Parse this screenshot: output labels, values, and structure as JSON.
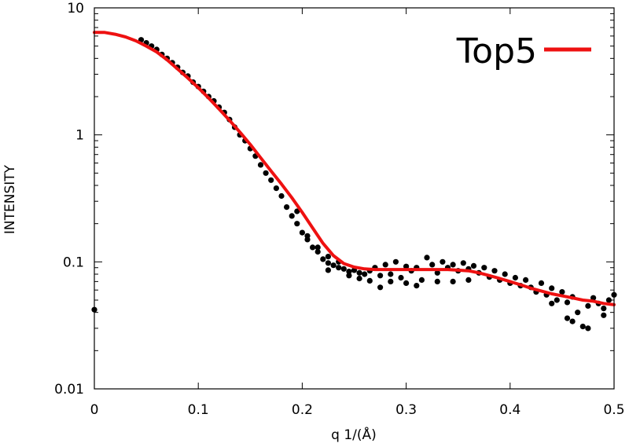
{
  "chart_data": {
    "type": "scatter",
    "title": "",
    "xlabel": "q 1/(Å)",
    "ylabel": "INTENSITY",
    "xlim": [
      0,
      0.5
    ],
    "ylim": [
      0.01,
      10
    ],
    "yscale": "log",
    "grid": false,
    "legend_position": "top-right",
    "x_ticks": [
      "0",
      "0.1",
      "0.2",
      "0.3",
      "0.4",
      "0.5"
    ],
    "y_ticks": [
      "0.01",
      "0.1",
      "1",
      "10"
    ],
    "series": [
      {
        "name": "",
        "kind": "points",
        "color": "#000000",
        "points": [
          [
            0.0,
            0.042
          ],
          [
            0.045,
            5.6
          ],
          [
            0.05,
            5.3
          ],
          [
            0.055,
            5.0
          ],
          [
            0.06,
            4.7
          ],
          [
            0.065,
            4.3
          ],
          [
            0.07,
            4.0
          ],
          [
            0.075,
            3.7
          ],
          [
            0.08,
            3.4
          ],
          [
            0.085,
            3.1
          ],
          [
            0.09,
            2.9
          ],
          [
            0.095,
            2.6
          ],
          [
            0.1,
            2.4
          ],
          [
            0.105,
            2.2
          ],
          [
            0.11,
            2.0
          ],
          [
            0.115,
            1.85
          ],
          [
            0.12,
            1.65
          ],
          [
            0.125,
            1.5
          ],
          [
            0.13,
            1.32
          ],
          [
            0.135,
            1.15
          ],
          [
            0.14,
            1.0
          ],
          [
            0.145,
            0.9
          ],
          [
            0.15,
            0.78
          ],
          [
            0.155,
            0.68
          ],
          [
            0.16,
            0.58
          ],
          [
            0.165,
            0.5
          ],
          [
            0.17,
            0.44
          ],
          [
            0.175,
            0.38
          ],
          [
            0.18,
            0.33
          ],
          [
            0.185,
            0.27
          ],
          [
            0.19,
            0.23
          ],
          [
            0.195,
            0.2
          ],
          [
            0.2,
            0.17
          ],
          [
            0.205,
            0.15
          ],
          [
            0.21,
            0.13
          ],
          [
            0.215,
            0.12
          ],
          [
            0.22,
            0.105
          ],
          [
            0.225,
            0.098
          ],
          [
            0.23,
            0.094
          ],
          [
            0.235,
            0.09
          ],
          [
            0.24,
            0.088
          ],
          [
            0.245,
            0.084
          ],
          [
            0.25,
            0.086
          ],
          [
            0.255,
            0.082
          ],
          [
            0.26,
            0.08
          ],
          [
            0.265,
            0.085
          ],
          [
            0.27,
            0.09
          ],
          [
            0.275,
            0.078
          ],
          [
            0.28,
            0.095
          ],
          [
            0.285,
            0.08
          ],
          [
            0.29,
            0.1
          ],
          [
            0.295,
            0.075
          ],
          [
            0.3,
            0.092
          ],
          [
            0.305,
            0.085
          ],
          [
            0.31,
            0.09
          ],
          [
            0.315,
            0.072
          ],
          [
            0.32,
            0.108
          ],
          [
            0.325,
            0.095
          ],
          [
            0.33,
            0.082
          ],
          [
            0.335,
            0.1
          ],
          [
            0.34,
            0.09
          ],
          [
            0.345,
            0.095
          ],
          [
            0.35,
            0.085
          ],
          [
            0.355,
            0.098
          ],
          [
            0.36,
            0.088
          ],
          [
            0.365,
            0.093
          ],
          [
            0.37,
            0.082
          ],
          [
            0.375,
            0.09
          ],
          [
            0.38,
            0.076
          ],
          [
            0.385,
            0.085
          ],
          [
            0.39,
            0.072
          ],
          [
            0.395,
            0.08
          ],
          [
            0.4,
            0.068
          ],
          [
            0.405,
            0.075
          ],
          [
            0.41,
            0.065
          ],
          [
            0.415,
            0.072
          ],
          [
            0.42,
            0.063
          ],
          [
            0.425,
            0.058
          ],
          [
            0.43,
            0.068
          ],
          [
            0.435,
            0.055
          ],
          [
            0.44,
            0.062
          ],
          [
            0.445,
            0.05
          ],
          [
            0.45,
            0.058
          ],
          [
            0.455,
            0.048
          ],
          [
            0.46,
            0.053
          ],
          [
            0.465,
            0.04
          ],
          [
            0.47,
            0.031
          ],
          [
            0.475,
            0.045
          ],
          [
            0.48,
            0.052
          ],
          [
            0.485,
            0.047
          ],
          [
            0.49,
            0.043
          ],
          [
            0.495,
            0.05
          ],
          [
            0.5,
            0.055
          ],
          [
            0.275,
            0.063
          ],
          [
            0.285,
            0.07
          ],
          [
            0.3,
            0.068
          ],
          [
            0.31,
            0.065
          ],
          [
            0.33,
            0.07
          ],
          [
            0.345,
            0.07
          ],
          [
            0.36,
            0.072
          ],
          [
            0.44,
            0.047
          ],
          [
            0.455,
            0.036
          ],
          [
            0.46,
            0.034
          ],
          [
            0.475,
            0.03
          ],
          [
            0.49,
            0.038
          ],
          [
            0.225,
            0.086
          ],
          [
            0.235,
            0.1
          ],
          [
            0.245,
            0.078
          ],
          [
            0.255,
            0.074
          ],
          [
            0.265,
            0.071
          ],
          [
            0.215,
            0.13
          ],
          [
            0.225,
            0.11
          ],
          [
            0.195,
            0.25
          ],
          [
            0.205,
            0.16
          ]
        ]
      },
      {
        "name": "Top5",
        "kind": "line",
        "color": "#ee1111",
        "points": [
          [
            0.0,
            6.4
          ],
          [
            0.01,
            6.4
          ],
          [
            0.02,
            6.2
          ],
          [
            0.03,
            5.9
          ],
          [
            0.04,
            5.5
          ],
          [
            0.05,
            5.0
          ],
          [
            0.06,
            4.5
          ],
          [
            0.07,
            3.9
          ],
          [
            0.08,
            3.3
          ],
          [
            0.09,
            2.8
          ],
          [
            0.1,
            2.35
          ],
          [
            0.11,
            1.95
          ],
          [
            0.12,
            1.6
          ],
          [
            0.13,
            1.3
          ],
          [
            0.14,
            1.05
          ],
          [
            0.15,
            0.84
          ],
          [
            0.16,
            0.66
          ],
          [
            0.17,
            0.52
          ],
          [
            0.18,
            0.41
          ],
          [
            0.19,
            0.32
          ],
          [
            0.2,
            0.245
          ],
          [
            0.21,
            0.185
          ],
          [
            0.22,
            0.14
          ],
          [
            0.23,
            0.112
          ],
          [
            0.24,
            0.097
          ],
          [
            0.25,
            0.091
          ],
          [
            0.26,
            0.088
          ],
          [
            0.27,
            0.087
          ],
          [
            0.28,
            0.087
          ],
          [
            0.29,
            0.087
          ],
          [
            0.3,
            0.087
          ],
          [
            0.31,
            0.087
          ],
          [
            0.32,
            0.087
          ],
          [
            0.33,
            0.087
          ],
          [
            0.34,
            0.087
          ],
          [
            0.35,
            0.086
          ],
          [
            0.36,
            0.085
          ],
          [
            0.37,
            0.082
          ],
          [
            0.38,
            0.078
          ],
          [
            0.39,
            0.074
          ],
          [
            0.4,
            0.07
          ],
          [
            0.41,
            0.066
          ],
          [
            0.42,
            0.062
          ],
          [
            0.43,
            0.059
          ],
          [
            0.44,
            0.056
          ],
          [
            0.45,
            0.054
          ],
          [
            0.46,
            0.052
          ],
          [
            0.47,
            0.05
          ],
          [
            0.48,
            0.049
          ],
          [
            0.49,
            0.047
          ],
          [
            0.5,
            0.046
          ]
        ]
      }
    ]
  }
}
